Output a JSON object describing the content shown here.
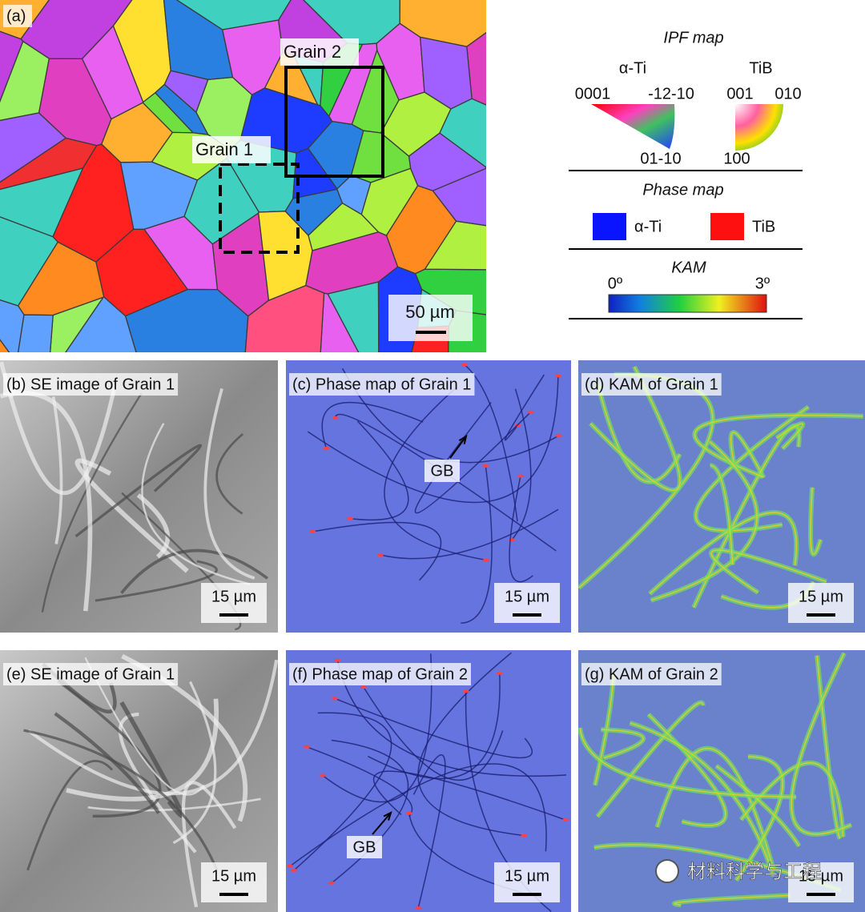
{
  "panel_a": {
    "label": "(a)",
    "grain_2": "Grain 2",
    "grain_1": "Grain 1",
    "scale_bar": "50 µm"
  },
  "legend": {
    "ipf_title": "IPF map",
    "alpha_ti": "α-Ti",
    "tib": "TiB",
    "alpha_corners": [
      "0001",
      "-12-10",
      "01-10"
    ],
    "tib_corners": [
      "001",
      "010",
      "100"
    ],
    "phase_title": "Phase map",
    "phase_alpha": "α-Ti",
    "phase_tib": "TiB",
    "kam_title": "KAM",
    "kam_min": "0º",
    "kam_max": "3º"
  },
  "panels": [
    {
      "label": "(b) SE image of Grain 1",
      "scale_bar": "15 µm"
    },
    {
      "label": "(c) Phase map of Grain 1",
      "scale_bar": "15 µm",
      "annotation": "GB"
    },
    {
      "label": "(d) KAM of Grain 1",
      "scale_bar": "15 µm"
    },
    {
      "label": "(e) SE image of Grain 1",
      "scale_bar": "15 µm"
    },
    {
      "label": "(f) Phase map of Grain 2",
      "scale_bar": "15 µm",
      "annotation": "GB"
    },
    {
      "label": "(g) KAM of Grain 2",
      "scale_bar": "15 µm"
    }
  ],
  "watermark": "材料科学与工程"
}
